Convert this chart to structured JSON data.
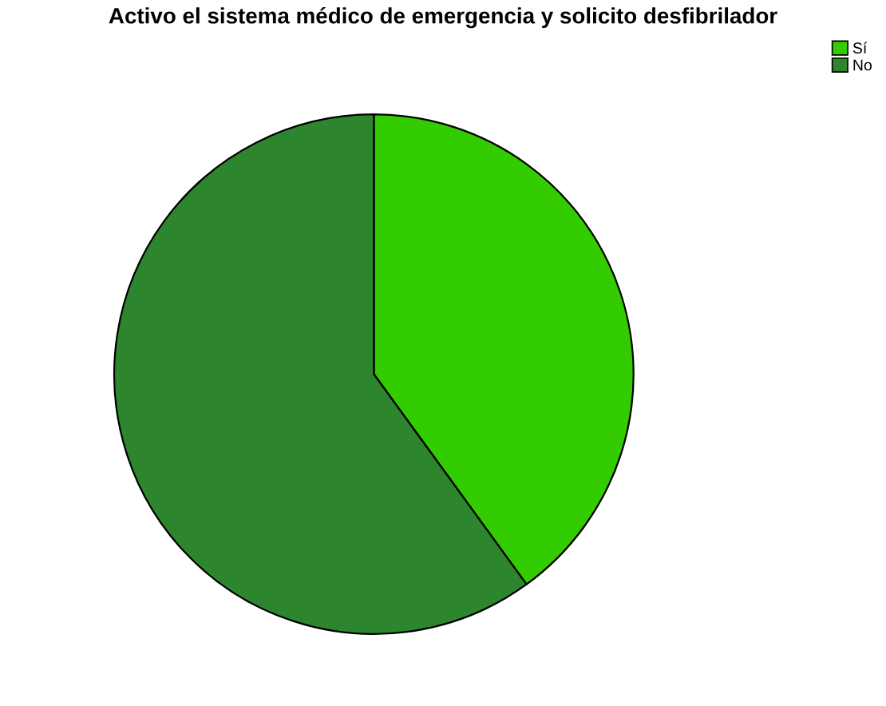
{
  "chart_data": {
    "type": "pie",
    "title": "Activo el sistema médico de emergencia y solicito desfibrilador",
    "categories": [
      "Sí",
      "No"
    ],
    "values": [
      40,
      60
    ],
    "colors": [
      "#33cc00",
      "#2d862d"
    ],
    "legend": "top right"
  }
}
